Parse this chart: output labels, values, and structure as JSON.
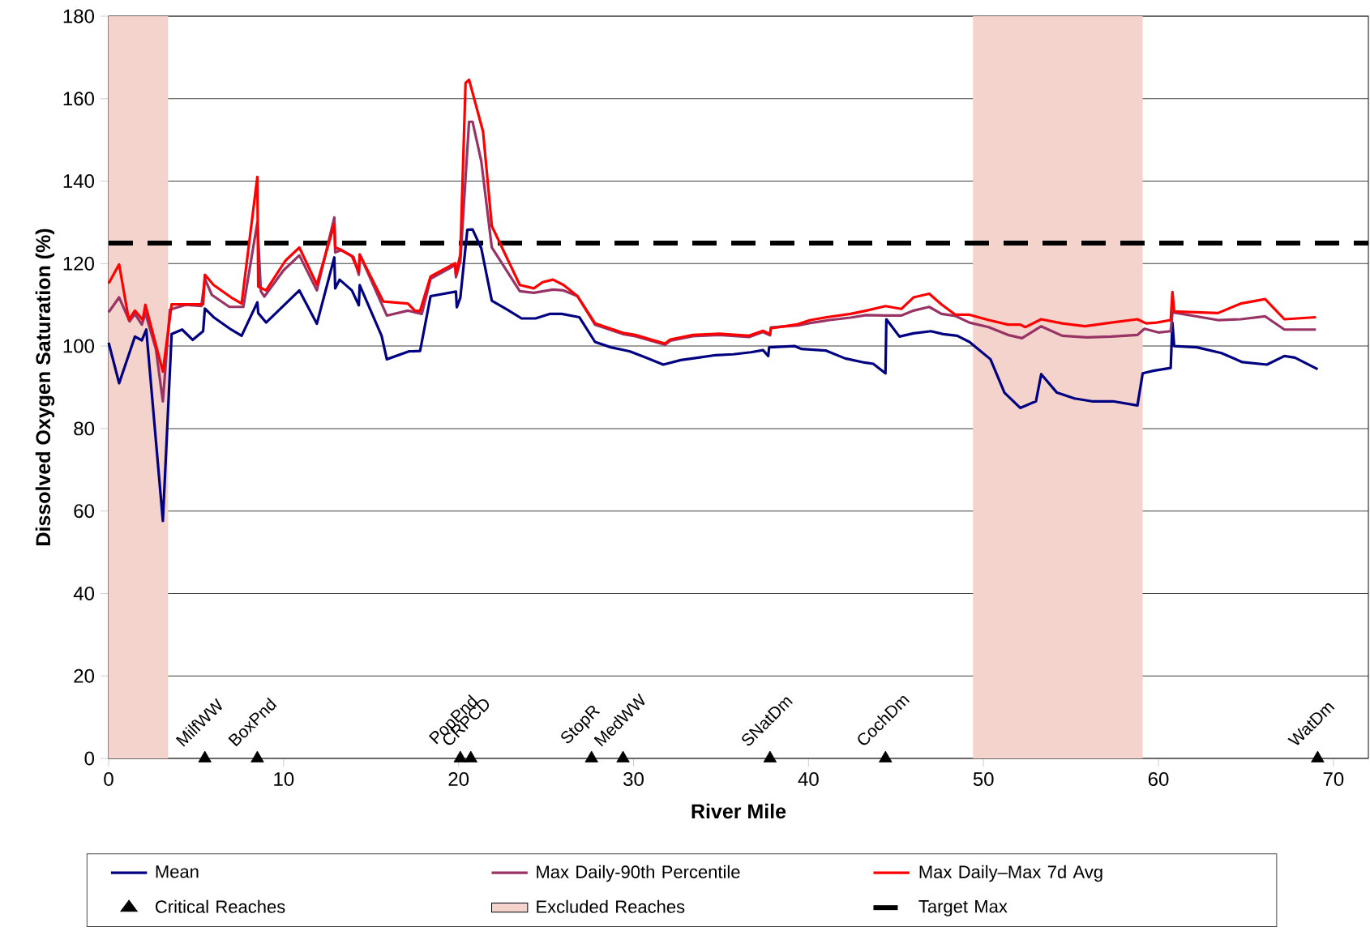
{
  "chart_data": {
    "type": "line",
    "xlabel": "River Mile",
    "ylabel": "Dissolved Oxygen Saturation (%)",
    "xlim": [
      0,
      72
    ],
    "ylim": [
      0,
      180
    ],
    "xticks": [
      0,
      10,
      20,
      30,
      40,
      50,
      60,
      70
    ],
    "yticks": [
      0,
      20,
      40,
      60,
      80,
      100,
      120,
      140,
      160,
      180
    ],
    "grid": "y",
    "legend": "bottom",
    "line_style": "solid",
    "series": [
      {
        "name": "Mean",
        "color": "#000080",
        "x": [
          0,
          0.6,
          1.5,
          1.9,
          2.15,
          3.1,
          3.6,
          4.2,
          4.8,
          5.4,
          5.5,
          6.0,
          7.0,
          7.6,
          8.5,
          8.55,
          9.0,
          10.9,
          11.9,
          12.9,
          12.95,
          13.2,
          13.9,
          14.3,
          14.35,
          15.6,
          15.9,
          17.15,
          17.8,
          18.4,
          19.85,
          19.9,
          20.1,
          20.5,
          20.8,
          21.3,
          21.9,
          22.8,
          23.6,
          24.4,
          25.2,
          25.9,
          26.9,
          27.8,
          28.7,
          29.8,
          30.7,
          31.7,
          32.7,
          33.7,
          34.7,
          35.7,
          36.7,
          37.4,
          37.7,
          37.75,
          39.2,
          39.6,
          41.0,
          42.1,
          43.2,
          43.7,
          44.4,
          44.45,
          45.2,
          46.0,
          47.0,
          47.7,
          48.5,
          49.2,
          50.4,
          51.2,
          52.1,
          53.0,
          53.3,
          54.2,
          55.2,
          56.2,
          57.4,
          58.8,
          59.1,
          59.7,
          60.7,
          60.8,
          60.9,
          62.2,
          63.6,
          64.8,
          66.2,
          67.2,
          67.8,
          69.1
        ],
        "values": [
          100.8,
          91,
          102.3,
          101.4,
          104,
          57.6,
          102.9,
          104,
          101.5,
          103.6,
          109.1,
          107,
          104,
          102.5,
          110.6,
          108,
          105.7,
          113.5,
          105.4,
          121.5,
          114,
          116.1,
          113.5,
          109.9,
          114.8,
          102.5,
          96.8,
          98.7,
          98.8,
          112.1,
          113.2,
          109.4,
          111.7,
          128.2,
          128.3,
          123.7,
          111,
          108.8,
          106.7,
          106.7,
          107.8,
          107.8,
          107,
          101,
          99.7,
          98.7,
          97.2,
          95.5,
          96.6,
          97.2,
          97.8,
          98,
          98.5,
          99,
          97.6,
          99.7,
          100,
          99.3,
          98.9,
          97,
          96,
          95.7,
          93.4,
          106.5,
          102.3,
          103.1,
          103.6,
          102.9,
          102.5,
          101,
          96.8,
          88.7,
          85,
          86.6,
          93.2,
          88.7,
          87.3,
          86.6,
          86.6,
          85.6,
          93.4,
          94,
          94.7,
          105.7,
          100,
          99.7,
          98.3,
          96.1,
          95.5,
          97.6,
          97.2,
          94.4
        ]
      },
      {
        "name": "Max Daily-90th Percentile",
        "color": "#993366",
        "x": [
          0,
          0.6,
          1.2,
          1.5,
          1.9,
          2.1,
          2.7,
          3.1,
          3.5,
          4.4,
          5.3,
          5.5,
          5.9,
          6.9,
          7.7,
          8.5,
          8.7,
          8.9,
          10.0,
          10.9,
          11.9,
          12.9,
          12.95,
          13.3,
          14.0,
          14.3,
          14.35,
          15.9,
          17.1,
          17.9,
          18.4,
          19.8,
          19.85,
          20.1,
          20.6,
          20.8,
          21.3,
          21.9,
          23.5,
          24.3,
          25.4,
          26.0,
          26.8,
          27.8,
          28.5,
          29.4,
          30.1,
          31.0,
          31.8,
          32.1,
          33.4,
          34.9,
          36.6,
          37.4,
          37.8,
          37.85,
          39.4,
          40.1,
          41.2,
          42.4,
          43.3,
          44.4,
          45.3,
          46.0,
          46.9,
          47.6,
          48.4,
          49.2,
          50.3,
          51.4,
          52.2,
          53.3,
          54.5,
          55.9,
          57.3,
          58.8,
          59.2,
          60.0,
          60.7,
          60.8,
          63.4,
          64.7,
          66.1,
          67.2,
          69.0
        ],
        "values": [
          108.2,
          111.8,
          106,
          107.8,
          105.2,
          108,
          99.3,
          86.6,
          108.8,
          110,
          109.7,
          116.3,
          112.4,
          109.5,
          109.5,
          130,
          113.3,
          112,
          118.4,
          122,
          113.5,
          131.2,
          122.7,
          123.3,
          121.6,
          117.3,
          122.2,
          107.4,
          108.6,
          107.8,
          116.3,
          119.6,
          116.7,
          120.5,
          154.4,
          154.4,
          144.8,
          123.9,
          113.3,
          112.9,
          113.7,
          113.5,
          112.1,
          105.2,
          104.2,
          102.9,
          102.4,
          101.3,
          100.3,
          101.3,
          102.4,
          102.7,
          102.2,
          103.4,
          102.6,
          104.5,
          105,
          105.6,
          106.3,
          106.9,
          107.5,
          107.4,
          107.4,
          108.6,
          109.5,
          107.8,
          107.3,
          105.7,
          104.6,
          102.7,
          101.9,
          104.8,
          102.5,
          102.1,
          102.3,
          102.7,
          104.2,
          103.3,
          103.6,
          108.2,
          106.3,
          106.5,
          107.2,
          104,
          104
        ]
      },
      {
        "name": "Max Daily–Max 7d Avg",
        "color": "#ff0000",
        "x": [
          0,
          0.6,
          1.15,
          1.5,
          1.95,
          2.1,
          3.1,
          3.6,
          5.4,
          5.5,
          6.0,
          7.0,
          7.6,
          8.5,
          8.55,
          9.0,
          10.1,
          10.9,
          11.9,
          12.9,
          12.95,
          13.2,
          13.9,
          14.3,
          14.35,
          15.7,
          17.1,
          17.5,
          17.8,
          18.4,
          19.8,
          19.85,
          20.1,
          20.4,
          20.6,
          21.4,
          21.9,
          23.5,
          24.3,
          24.8,
          25.4,
          26.0,
          26.8,
          27.8,
          28.5,
          29.4,
          30.1,
          31.0,
          31.8,
          32.1,
          33.4,
          34.9,
          36.6,
          37.4,
          37.8,
          37.85,
          39.4,
          40.1,
          41.2,
          42.4,
          43.3,
          44.4,
          45.3,
          46.0,
          46.9,
          47.6,
          48.4,
          49.2,
          50.3,
          51.4,
          52.1,
          52.4,
          53.3,
          54.5,
          55.8,
          57.3,
          58.8,
          59.3,
          59.9,
          60.7,
          60.8,
          60.9,
          63.4,
          64.7,
          66.1,
          67.2,
          69.0
        ],
        "values": [
          115.2,
          119.8,
          106.4,
          108.6,
          106.3,
          110,
          93.8,
          110.1,
          110.1,
          117.3,
          114.8,
          111.8,
          110.3,
          141,
          114.4,
          113.5,
          120.7,
          123.9,
          114.9,
          129.6,
          123.9,
          123.5,
          121.8,
          118,
          122.2,
          110.8,
          110.3,
          108.6,
          108.5,
          116.9,
          120.1,
          117.4,
          122.2,
          163.8,
          164.6,
          152,
          129.1,
          114.8,
          114,
          115.5,
          116.1,
          114.8,
          112.1,
          105.5,
          104.5,
          103.2,
          102.7,
          101.6,
          100.6,
          101.6,
          102.7,
          103,
          102.5,
          103.7,
          102.9,
          104.3,
          105.3,
          106.3,
          107.1,
          107.8,
          108.6,
          109.7,
          109,
          111.8,
          112.7,
          110.1,
          107.6,
          107.6,
          106.3,
          105.2,
          105.2,
          104.6,
          106.5,
          105.5,
          104.8,
          105.7,
          106.5,
          105.5,
          105.7,
          106.3,
          113.1,
          108.4,
          108,
          110.3,
          111.4,
          106.5,
          107
        ]
      },
      {
        "name": "Critical Reaches",
        "type": "scatter",
        "marker": "triangle",
        "color": "#000000",
        "x": [
          5.5,
          8.5,
          20.1,
          20.7,
          27.6,
          29.4,
          37.8,
          44.4,
          69.1
        ],
        "values": [
          0,
          0,
          0,
          0,
          0,
          0,
          0,
          0,
          0
        ]
      }
    ],
    "annotations": [
      {
        "text": "MilfWW",
        "x": 5.5,
        "y": 0
      },
      {
        "text": "BoxPnd",
        "x": 8.5,
        "y": 0
      },
      {
        "text": "PopPnd",
        "x": 20.1,
        "y": 0
      },
      {
        "text": "CRPCD",
        "x": 20.7,
        "y": 0
      },
      {
        "text": "StopR",
        "x": 27.6,
        "y": 0
      },
      {
        "text": "MedWW",
        "x": 29.4,
        "y": 0
      },
      {
        "text": "SNatDm",
        "x": 37.8,
        "y": 0
      },
      {
        "text": "CochDm",
        "x": 44.4,
        "y": 0
      },
      {
        "text": "WatDm",
        "x": 69.1,
        "y": 0
      }
    ],
    "bands": [
      {
        "axis": "x",
        "from": 0,
        "to": 3.4,
        "label": "Excluded Reaches",
        "color": "#f3d3cb"
      },
      {
        "axis": "x",
        "from": 49.4,
        "to": 59.1,
        "color": "#f3d3cb"
      }
    ],
    "ref_lines": [
      {
        "axis": "y",
        "value": 125,
        "label": "Target Max",
        "color": "#000000",
        "line_style": "dashed"
      }
    ]
  }
}
